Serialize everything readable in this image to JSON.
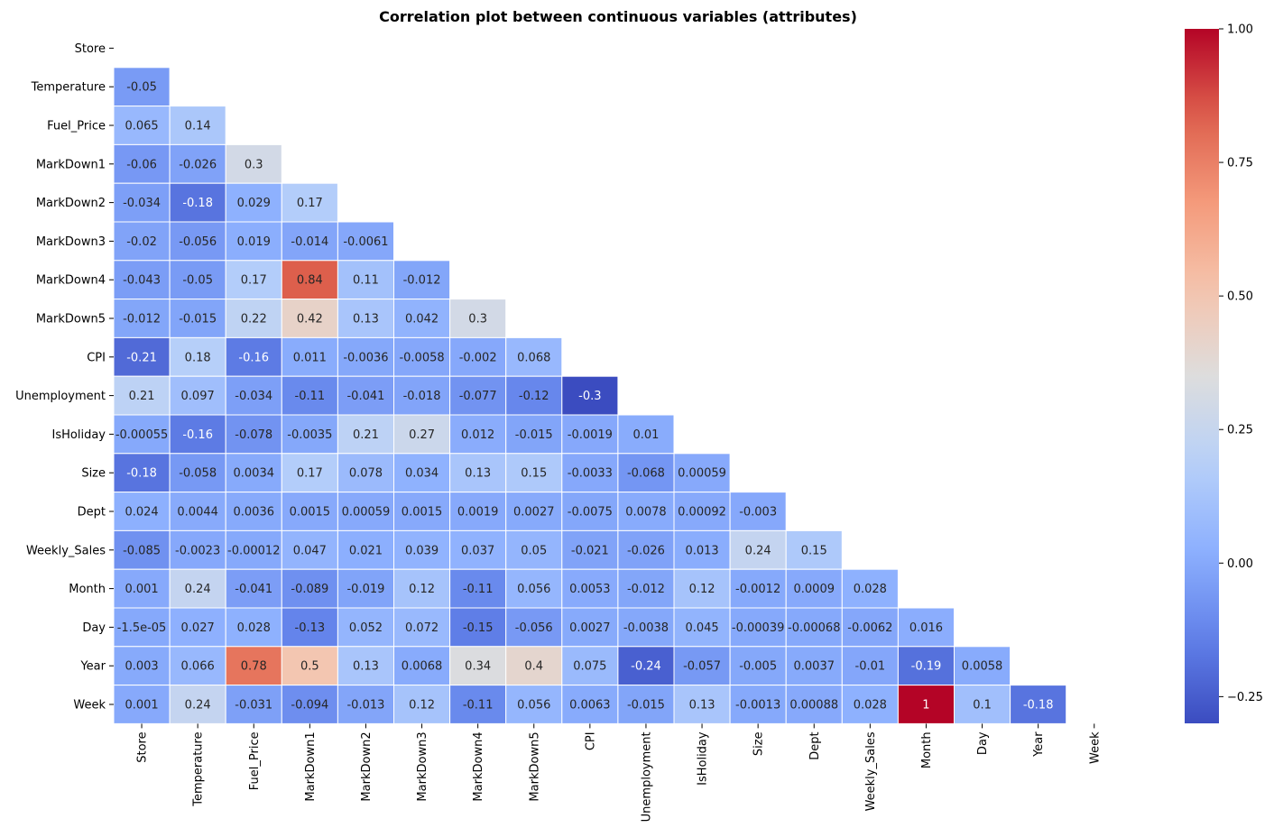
{
  "chart_data": {
    "type": "heatmap",
    "title": "Correlation plot between continuous variables (attributes)",
    "xlabel": "",
    "ylabel": "",
    "colormap": "coolwarm",
    "mask": "upper-triangle-including-diagonal",
    "color_range": [
      -0.3,
      1.0
    ],
    "colorbar": {
      "ticks": [
        -0.25,
        0.0,
        0.25,
        0.5,
        0.75,
        1.0
      ],
      "tick_labels": [
        "−0.25",
        "0.00",
        "0.25",
        "0.50",
        "0.75",
        "1.00"
      ],
      "placement": "right"
    },
    "variables": [
      "Store",
      "Temperature",
      "Fuel_Price",
      "MarkDown1",
      "MarkDown2",
      "MarkDown3",
      "MarkDown4",
      "MarkDown5",
      "CPI",
      "Unemployment",
      "IsHoliday",
      "Size",
      "Dept",
      "Weekly_Sales",
      "Month",
      "Day",
      "Year",
      "Week"
    ],
    "rows": [
      [],
      [
        {
          "v": -0.05,
          "label": "-0.05"
        }
      ],
      [
        {
          "v": 0.065,
          "label": "0.065"
        },
        {
          "v": 0.14,
          "label": "0.14"
        }
      ],
      [
        {
          "v": -0.06,
          "label": "-0.06"
        },
        {
          "v": -0.026,
          "label": "-0.026"
        },
        {
          "v": 0.3,
          "label": "0.3"
        }
      ],
      [
        {
          "v": -0.034,
          "label": "-0.034"
        },
        {
          "v": -0.18,
          "label": "-0.18"
        },
        {
          "v": 0.029,
          "label": "0.029"
        },
        {
          "v": 0.17,
          "label": "0.17"
        }
      ],
      [
        {
          "v": -0.02,
          "label": "-0.02"
        },
        {
          "v": -0.056,
          "label": "-0.056"
        },
        {
          "v": 0.019,
          "label": "0.019"
        },
        {
          "v": -0.014,
          "label": "-0.014"
        },
        {
          "v": -0.0061,
          "label": "-0.0061"
        }
      ],
      [
        {
          "v": -0.043,
          "label": "-0.043"
        },
        {
          "v": -0.05,
          "label": "-0.05"
        },
        {
          "v": 0.17,
          "label": "0.17"
        },
        {
          "v": 0.84,
          "label": "0.84"
        },
        {
          "v": 0.11,
          "label": "0.11"
        },
        {
          "v": -0.012,
          "label": "-0.012"
        }
      ],
      [
        {
          "v": -0.012,
          "label": "-0.012"
        },
        {
          "v": -0.015,
          "label": "-0.015"
        },
        {
          "v": 0.22,
          "label": "0.22"
        },
        {
          "v": 0.42,
          "label": "0.42"
        },
        {
          "v": 0.13,
          "label": "0.13"
        },
        {
          "v": 0.042,
          "label": "0.042"
        },
        {
          "v": 0.3,
          "label": "0.3"
        }
      ],
      [
        {
          "v": -0.21,
          "label": "-0.21"
        },
        {
          "v": 0.18,
          "label": "0.18"
        },
        {
          "v": -0.16,
          "label": "-0.16"
        },
        {
          "v": 0.011,
          "label": "0.011"
        },
        {
          "v": -0.0036,
          "label": "-0.0036"
        },
        {
          "v": -0.0058,
          "label": "-0.0058"
        },
        {
          "v": -0.002,
          "label": "-0.002"
        },
        {
          "v": 0.068,
          "label": "0.068"
        }
      ],
      [
        {
          "v": 0.21,
          "label": "0.21"
        },
        {
          "v": 0.097,
          "label": "0.097"
        },
        {
          "v": -0.034,
          "label": "-0.034"
        },
        {
          "v": -0.11,
          "label": "-0.11"
        },
        {
          "v": -0.041,
          "label": "-0.041"
        },
        {
          "v": -0.018,
          "label": "-0.018"
        },
        {
          "v": -0.077,
          "label": "-0.077"
        },
        {
          "v": -0.12,
          "label": "-0.12"
        },
        {
          "v": -0.3,
          "label": "-0.3"
        }
      ],
      [
        {
          "v": -0.00055,
          "label": "-0.00055"
        },
        {
          "v": -0.16,
          "label": "-0.16"
        },
        {
          "v": -0.078,
          "label": "-0.078"
        },
        {
          "v": -0.0035,
          "label": "-0.0035"
        },
        {
          "v": 0.21,
          "label": "0.21"
        },
        {
          "v": 0.27,
          "label": "0.27"
        },
        {
          "v": 0.012,
          "label": "0.012"
        },
        {
          "v": -0.015,
          "label": "-0.015"
        },
        {
          "v": -0.0019,
          "label": "-0.0019"
        },
        {
          "v": 0.01,
          "label": "0.01"
        }
      ],
      [
        {
          "v": -0.18,
          "label": "-0.18"
        },
        {
          "v": -0.058,
          "label": "-0.058"
        },
        {
          "v": 0.0034,
          "label": "0.0034"
        },
        {
          "v": 0.17,
          "label": "0.17"
        },
        {
          "v": 0.078,
          "label": "0.078"
        },
        {
          "v": 0.034,
          "label": "0.034"
        },
        {
          "v": 0.13,
          "label": "0.13"
        },
        {
          "v": 0.15,
          "label": "0.15"
        },
        {
          "v": -0.0033,
          "label": "-0.0033"
        },
        {
          "v": -0.068,
          "label": "-0.068"
        },
        {
          "v": 0.00059,
          "label": "0.00059"
        }
      ],
      [
        {
          "v": 0.024,
          "label": "0.024"
        },
        {
          "v": 0.0044,
          "label": "0.0044"
        },
        {
          "v": 0.0036,
          "label": "0.0036"
        },
        {
          "v": 0.0015,
          "label": "0.0015"
        },
        {
          "v": 0.00059,
          "label": "0.00059"
        },
        {
          "v": 0.0015,
          "label": "0.0015"
        },
        {
          "v": 0.0019,
          "label": "0.0019"
        },
        {
          "v": 0.0027,
          "label": "0.0027"
        },
        {
          "v": -0.0075,
          "label": "-0.0075"
        },
        {
          "v": 0.0078,
          "label": "0.0078"
        },
        {
          "v": 0.00092,
          "label": "0.00092"
        },
        {
          "v": -0.003,
          "label": "-0.003"
        }
      ],
      [
        {
          "v": -0.085,
          "label": "-0.085"
        },
        {
          "v": -0.0023,
          "label": "-0.0023"
        },
        {
          "v": -0.00012,
          "label": "-0.00012"
        },
        {
          "v": 0.047,
          "label": "0.047"
        },
        {
          "v": 0.021,
          "label": "0.021"
        },
        {
          "v": 0.039,
          "label": "0.039"
        },
        {
          "v": 0.037,
          "label": "0.037"
        },
        {
          "v": 0.05,
          "label": "0.05"
        },
        {
          "v": -0.021,
          "label": "-0.021"
        },
        {
          "v": -0.026,
          "label": "-0.026"
        },
        {
          "v": 0.013,
          "label": "0.013"
        },
        {
          "v": 0.24,
          "label": "0.24"
        },
        {
          "v": 0.15,
          "label": "0.15"
        }
      ],
      [
        {
          "v": 0.001,
          "label": "0.001"
        },
        {
          "v": 0.24,
          "label": "0.24"
        },
        {
          "v": -0.041,
          "label": "-0.041"
        },
        {
          "v": -0.089,
          "label": "-0.089"
        },
        {
          "v": -0.019,
          "label": "-0.019"
        },
        {
          "v": 0.12,
          "label": "0.12"
        },
        {
          "v": -0.11,
          "label": "-0.11"
        },
        {
          "v": 0.056,
          "label": "0.056"
        },
        {
          "v": 0.0053,
          "label": "0.0053"
        },
        {
          "v": -0.012,
          "label": "-0.012"
        },
        {
          "v": 0.12,
          "label": "0.12"
        },
        {
          "v": -0.0012,
          "label": "-0.0012"
        },
        {
          "v": 0.0009,
          "label": "0.0009"
        },
        {
          "v": 0.028,
          "label": "0.028"
        }
      ],
      [
        {
          "v": -1.5e-05,
          "label": "-1.5e-05"
        },
        {
          "v": 0.027,
          "label": "0.027"
        },
        {
          "v": 0.028,
          "label": "0.028"
        },
        {
          "v": -0.13,
          "label": "-0.13"
        },
        {
          "v": 0.052,
          "label": "0.052"
        },
        {
          "v": 0.072,
          "label": "0.072"
        },
        {
          "v": -0.15,
          "label": "-0.15"
        },
        {
          "v": -0.056,
          "label": "-0.056"
        },
        {
          "v": 0.0027,
          "label": "0.0027"
        },
        {
          "v": -0.0038,
          "label": "-0.0038"
        },
        {
          "v": 0.045,
          "label": "0.045"
        },
        {
          "v": -0.00039,
          "label": "-0.00039"
        },
        {
          "v": -0.00068,
          "label": "-0.00068"
        },
        {
          "v": -0.0062,
          "label": "-0.0062"
        },
        {
          "v": 0.016,
          "label": "0.016"
        }
      ],
      [
        {
          "v": 0.003,
          "label": "0.003"
        },
        {
          "v": 0.066,
          "label": "0.066"
        },
        {
          "v": 0.78,
          "label": "0.78"
        },
        {
          "v": 0.5,
          "label": "0.5"
        },
        {
          "v": 0.13,
          "label": "0.13"
        },
        {
          "v": 0.0068,
          "label": "0.0068"
        },
        {
          "v": 0.34,
          "label": "0.34"
        },
        {
          "v": 0.4,
          "label": "0.4"
        },
        {
          "v": 0.075,
          "label": "0.075"
        },
        {
          "v": -0.24,
          "label": "-0.24"
        },
        {
          "v": -0.057,
          "label": "-0.057"
        },
        {
          "v": -0.005,
          "label": "-0.005"
        },
        {
          "v": 0.0037,
          "label": "0.0037"
        },
        {
          "v": -0.01,
          "label": "-0.01"
        },
        {
          "v": -0.19,
          "label": "-0.19"
        },
        {
          "v": 0.0058,
          "label": "0.0058"
        }
      ],
      [
        {
          "v": 0.001,
          "label": "0.001"
        },
        {
          "v": 0.24,
          "label": "0.24"
        },
        {
          "v": -0.031,
          "label": "-0.031"
        },
        {
          "v": -0.094,
          "label": "-0.094"
        },
        {
          "v": -0.013,
          "label": "-0.013"
        },
        {
          "v": 0.12,
          "label": "0.12"
        },
        {
          "v": -0.11,
          "label": "-0.11"
        },
        {
          "v": 0.056,
          "label": "0.056"
        },
        {
          "v": 0.0063,
          "label": "0.0063"
        },
        {
          "v": -0.015,
          "label": "-0.015"
        },
        {
          "v": 0.13,
          "label": "0.13"
        },
        {
          "v": -0.0013,
          "label": "-0.0013"
        },
        {
          "v": 0.00088,
          "label": "0.00088"
        },
        {
          "v": 0.028,
          "label": "0.028"
        },
        {
          "v": 1.0,
          "label": "1"
        },
        {
          "v": 0.1,
          "label": "0.1"
        },
        {
          "v": -0.18,
          "label": "-0.18"
        }
      ]
    ]
  }
}
